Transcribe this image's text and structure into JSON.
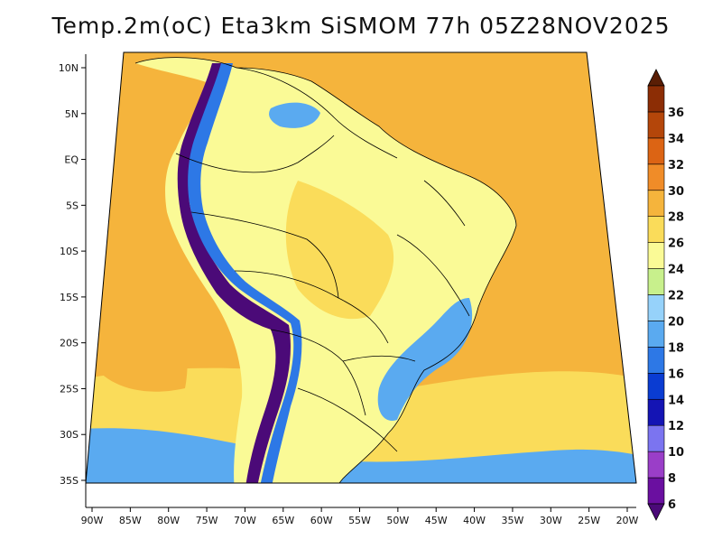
{
  "title": "Temp.2m(oC) Eta3km SiSMOM 77h 05Z28NOV2025",
  "map": {
    "lon_range": [
      -90,
      -20
    ],
    "lat_range": [
      -38,
      11
    ],
    "lon_ticks": [
      {
        "value": -90,
        "label": "90W"
      },
      {
        "value": -85,
        "label": "85W"
      },
      {
        "value": -80,
        "label": "80W"
      },
      {
        "value": -75,
        "label": "75W"
      },
      {
        "value": -70,
        "label": "70W"
      },
      {
        "value": -65,
        "label": "65W"
      },
      {
        "value": -60,
        "label": "60W"
      },
      {
        "value": -55,
        "label": "55W"
      },
      {
        "value": -50,
        "label": "50W"
      },
      {
        "value": -45,
        "label": "45W"
      },
      {
        "value": -40,
        "label": "40W"
      },
      {
        "value": -35,
        "label": "35W"
      },
      {
        "value": -30,
        "label": "30W"
      },
      {
        "value": -25,
        "label": "25W"
      },
      {
        "value": -20,
        "label": "20W"
      }
    ],
    "lat_ticks": [
      {
        "value": 10,
        "label": "10N"
      },
      {
        "value": 5,
        "label": "5N"
      },
      {
        "value": 0,
        "label": "EQ"
      },
      {
        "value": -5,
        "label": "5S"
      },
      {
        "value": -10,
        "label": "10S"
      },
      {
        "value": -15,
        "label": "15S"
      },
      {
        "value": -20,
        "label": "20S"
      },
      {
        "value": -25,
        "label": "25S"
      },
      {
        "value": -30,
        "label": "30S"
      },
      {
        "value": -35,
        "label": "35S"
      }
    ]
  },
  "colorbar": {
    "levels": [
      6,
      8,
      10,
      12,
      14,
      16,
      18,
      20,
      22,
      24,
      26,
      28,
      30,
      32,
      34,
      36
    ],
    "colors": [
      "#6a0fa0",
      "#9a3ec8",
      "#7b74f0",
      "#1414b4",
      "#0a3cd2",
      "#2d78e6",
      "#5aaaf0",
      "#96d2fa",
      "#c8f08c",
      "#fafa96",
      "#fadc5a",
      "#f5b43c",
      "#f08c28",
      "#dc6414",
      "#b4460a",
      "#8c2d05"
    ],
    "under_color": "#4b0a78",
    "over_color": "#5a1e05"
  },
  "palette": {
    "ocean": "#f5b43c",
    "ocean_south": "#fadc5a",
    "land": "#fafa96",
    "andes": "#4b0a78",
    "coast_cool": "#5aaaf0"
  }
}
